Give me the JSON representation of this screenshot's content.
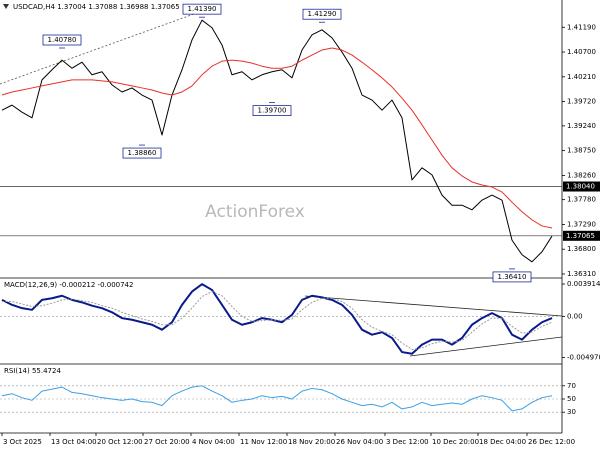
{
  "chart_data": [
    {
      "type": "line",
      "title": "USDCAD,H4 1.37004 1.37088 1.36988 1.37065",
      "watermark": "ActionForex",
      "x": [
        0,
        1,
        2,
        3,
        4,
        5,
        6,
        7,
        8,
        9,
        10,
        11,
        12,
        13,
        14,
        15,
        16,
        17,
        18,
        19,
        20,
        21,
        22,
        23,
        24,
        25,
        26,
        27,
        28,
        29,
        30,
        31,
        32,
        33,
        34,
        35,
        36,
        37,
        38,
        39,
        40,
        41,
        42,
        43,
        44,
        45,
        46,
        47,
        48,
        49,
        50,
        51,
        52,
        53,
        54,
        55
      ],
      "xlim": [
        0,
        55.5
      ],
      "ylim": [
        1.3625,
        1.4169
      ],
      "yticks": [
        {
          "value": 1.4119,
          "label": "1.41190"
        },
        {
          "value": 1.407,
          "label": "1.40700"
        },
        {
          "value": 1.4021,
          "label": "1.40210"
        },
        {
          "value": 1.3972,
          "label": "1.39720"
        },
        {
          "value": 1.3924,
          "label": "1.39240"
        },
        {
          "value": 1.3875,
          "label": "1.38750"
        },
        {
          "value": 1.3826,
          "label": "1.38260"
        },
        {
          "value": 1.3778,
          "label": "1.37780"
        },
        {
          "value": 1.3729,
          "label": "1.37290"
        },
        {
          "value": 1.368,
          "label": "1.36800"
        },
        {
          "value": 1.3631,
          "label": "1.36310"
        }
      ],
      "grid": false,
      "hlines": [
        {
          "value": 1.3804,
          "label": "1.38040"
        },
        {
          "value": 1.37065,
          "label": "1.37065"
        }
      ],
      "series": [
        {
          "color": "#000000",
          "values": [
            1.3955,
            1.3965,
            1.3951,
            1.394,
            1.4015,
            1.4035,
            1.4054,
            1.4038,
            1.405,
            1.4025,
            1.4031,
            1.4005,
            1.3991,
            1.3999,
            1.3985,
            1.3975,
            1.3906,
            1.3985,
            1.4035,
            1.4094,
            1.4133,
            1.4118,
            1.4084,
            1.4025,
            1.4031,
            1.4015,
            1.4025,
            1.4031,
            1.4035,
            1.4019,
            1.4074,
            1.4104,
            1.4114,
            1.4098,
            1.407,
            1.4038,
            1.3985,
            1.3975,
            1.3955,
            1.3975,
            1.394,
            1.3817,
            1.3841,
            1.3827,
            1.3787,
            1.3767,
            1.3767,
            1.3758,
            1.3777,
            1.3787,
            1.3777,
            1.3698,
            1.3669,
            1.3655,
            1.3675,
            1.3706
          ]
        },
        {
          "color": "#e8302a",
          "values": [
            1.3985,
            1.3991,
            1.3995,
            1.3999,
            1.4003,
            1.4007,
            1.4011,
            1.4015,
            1.4015,
            1.4015,
            1.4013,
            1.4011,
            1.4007,
            1.4003,
            1.3999,
            1.3995,
            1.3989,
            1.3985,
            1.3991,
            1.4003,
            1.4025,
            1.4042,
            1.4052,
            1.4054,
            1.4052,
            1.4048,
            1.4042,
            1.4038,
            1.4038,
            1.4042,
            1.4054,
            1.4064,
            1.4074,
            1.4078,
            1.4074,
            1.4064,
            1.405,
            1.4035,
            1.4019,
            1.4001,
            1.3979,
            1.3955,
            1.3926,
            1.3896,
            1.3866,
            1.3841,
            1.3825,
            1.3813,
            1.3807,
            1.3803,
            1.3793,
            1.3773,
            1.3754,
            1.3738,
            1.3726,
            1.3722
          ]
        }
      ],
      "annotations": [
        {
          "x": 6,
          "value": 1.4078,
          "label": "1.40780"
        },
        {
          "x": 20,
          "value": 1.4139,
          "label": "1.41390"
        },
        {
          "x": 32,
          "value": 1.4129,
          "label": "1.41290"
        },
        {
          "x": 14,
          "value": 1.3886,
          "label": "1.38860"
        },
        {
          "x": 27,
          "value": 1.397,
          "label": "1.39700"
        },
        {
          "x": 51,
          "value": 1.3641,
          "label": "1.36410"
        }
      ]
    },
    {
      "type": "line",
      "title": "MACD(12,26,9) -0.000212 -0.000742",
      "x": [
        0,
        1,
        2,
        3,
        4,
        5,
        6,
        7,
        8,
        9,
        10,
        11,
        12,
        13,
        14,
        15,
        16,
        17,
        18,
        19,
        20,
        21,
        22,
        23,
        24,
        25,
        26,
        27,
        28,
        29,
        30,
        31,
        32,
        33,
        34,
        35,
        36,
        37,
        38,
        39,
        40,
        41,
        42,
        43,
        44,
        45,
        46,
        47,
        48,
        49,
        50,
        51,
        52,
        53,
        54,
        55
      ],
      "xlim": [
        0,
        55.5
      ],
      "ylim": [
        -0.0055,
        0.0044
      ],
      "yticks": [
        0.003914,
        {
          "value": 0,
          "label": "0.00"
        },
        {
          "value": -0.00497,
          "label": "-0.004970"
        }
      ],
      "zero_line": true,
      "series": [
        {
          "color": "#0a1a8c",
          "width": 2,
          "values": [
            0.002,
            0.0014,
            0.001,
            0.0008,
            0.002,
            0.0022,
            0.0025,
            0.002,
            0.0017,
            0.0013,
            0.001,
            0.0005,
            -0.0002,
            -0.0004,
            -0.0007,
            -0.001,
            -0.0016,
            -0.0007,
            0.0014,
            0.003,
            0.0039,
            0.0032,
            0.0014,
            -0.0004,
            -0.001,
            -0.0007,
            -0.0002,
            -0.0004,
            -0.0007,
            0.0002,
            0.002,
            0.0025,
            0.0023,
            0.002,
            0.0014,
            0.0002,
            -0.0016,
            -0.0022,
            -0.0019,
            -0.0026,
            -0.0043,
            -0.0045,
            -0.0034,
            -0.0028,
            -0.0028,
            -0.0034,
            -0.0026,
            -0.001,
            -0.0002,
            0.0004,
            -0.0002,
            -0.0022,
            -0.0028,
            -0.0016,
            -0.0007,
            -0.0002
          ]
        },
        {
          "color": "#9a9a9a",
          "width": 1,
          "dashed": true,
          "values": [
            0.0018,
            0.0018,
            0.0015,
            0.0012,
            0.0013,
            0.0016,
            0.002,
            0.0021,
            0.0019,
            0.0017,
            0.0013,
            0.001,
            0.0005,
            0.0001,
            -0.0003,
            -0.0006,
            -0.001,
            -0.001,
            -0.0002,
            0.001,
            0.0024,
            0.003,
            0.0025,
            0.0012,
            0,
            -0.0006,
            -0.0005,
            -0.0004,
            -0.0005,
            -0.0003,
            0.0008,
            0.0017,
            0.0022,
            0.0022,
            0.0018,
            0.001,
            -0.0004,
            -0.0013,
            -0.0018,
            -0.0022,
            -0.0032,
            -0.004,
            -0.0038,
            -0.0033,
            -0.003,
            -0.0031,
            -0.0029,
            -0.0019,
            -0.0009,
            -0.0002,
            -0.0002,
            -0.0012,
            -0.002,
            -0.0019,
            -0.0012,
            -0.0007
          ]
        }
      ]
    },
    {
      "type": "line",
      "title": "RSI(14) 55.4724",
      "x": [
        0,
        1,
        2,
        3,
        4,
        5,
        6,
        7,
        8,
        9,
        10,
        11,
        12,
        13,
        14,
        15,
        16,
        17,
        18,
        19,
        20,
        21,
        22,
        23,
        24,
        25,
        26,
        27,
        28,
        29,
        30,
        31,
        32,
        33,
        34,
        35,
        36,
        37,
        38,
        39,
        40,
        41,
        42,
        43,
        44,
        45,
        46,
        47,
        48,
        49,
        50,
        51,
        52,
        53,
        54,
        55
      ],
      "xlim": [
        0,
        55.5
      ],
      "ylim": [
        0,
        100
      ],
      "yticks": [
        70,
        50,
        30
      ],
      "grid": true,
      "series": [
        {
          "color": "#3aa0e8",
          "width": 1,
          "values": [
            55,
            58,
            52,
            48,
            62,
            65,
            68,
            60,
            58,
            55,
            52,
            50,
            48,
            50,
            46,
            45,
            40,
            55,
            62,
            68,
            70,
            62,
            55,
            45,
            48,
            50,
            55,
            52,
            54,
            50,
            62,
            66,
            64,
            58,
            50,
            45,
            40,
            42,
            38,
            45,
            35,
            38,
            45,
            40,
            42,
            44,
            42,
            50,
            55,
            52,
            48,
            32,
            35,
            45,
            52,
            55
          ]
        }
      ],
      "xticks": [
        {
          "value": 0,
          "label": "3 Oct 2025"
        },
        {
          "value": 4.8,
          "label": "13 Oct 04:00"
        },
        {
          "value": 9.4,
          "label": "20 Oct 12:00"
        },
        {
          "value": 14.1,
          "label": "27 Oct 20:00"
        },
        {
          "value": 18.9,
          "label": "4 Nov 04:00"
        },
        {
          "value": 23.7,
          "label": "11 Nov 12:00"
        },
        {
          "value": 28.5,
          "label": "18 Nov 20:00"
        },
        {
          "value": 33.3,
          "label": "26 Nov 04:00"
        },
        {
          "value": 38.3,
          "label": "3 Dec 12:00"
        },
        {
          "value": 42.9,
          "label": "10 Dec 20:00"
        },
        {
          "value": 47.6,
          "label": "18 Dec 04:00"
        },
        {
          "value": 52.5,
          "label": "26 Dec 12:00"
        }
      ]
    }
  ]
}
